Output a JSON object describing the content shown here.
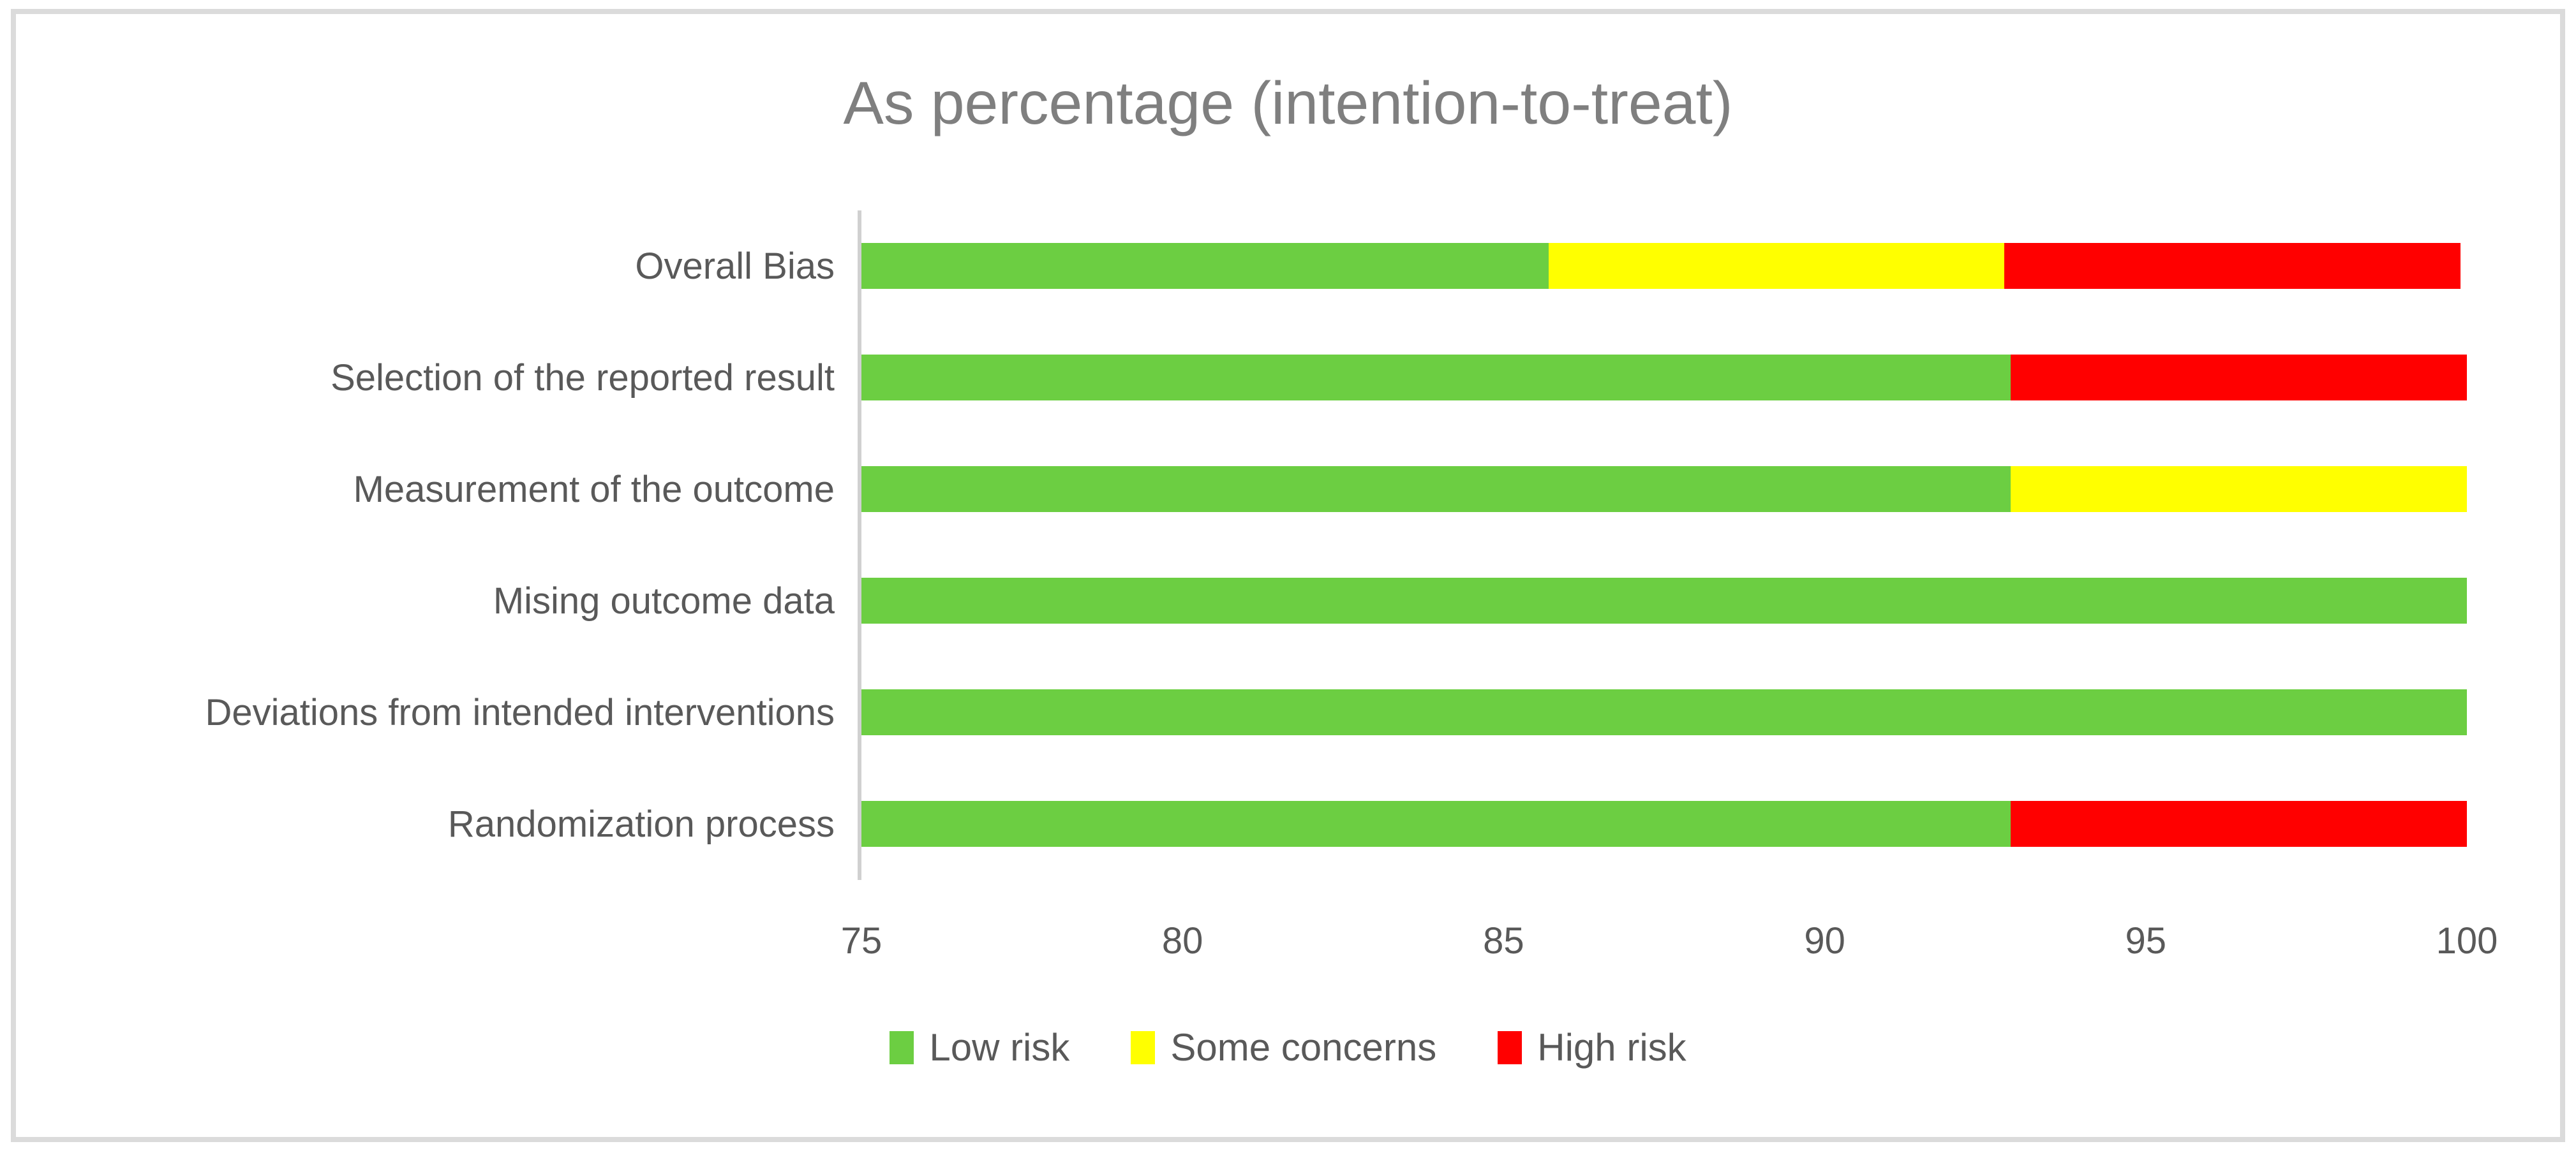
{
  "chart_data": {
    "type": "bar",
    "orientation": "horizontal",
    "stacked": true,
    "title": "As percentage (intention-to-treat)",
    "categories": [
      "Overall Bias",
      "Selection of the reported result",
      "Measurement of the outcome",
      "Mising outcome data",
      "Deviations from intended interventions",
      "Randomization process"
    ],
    "series": [
      {
        "name": "Low risk",
        "color": "#6CCE42",
        "values": [
          85.7,
          92.9,
          92.9,
          100,
          100,
          92.9
        ]
      },
      {
        "name": "Some concerns",
        "color": "#FFFF00",
        "values": [
          7.1,
          0,
          7.1,
          0,
          0,
          0
        ]
      },
      {
        "name": "High risk",
        "color": "#FF0000",
        "values": [
          7.1,
          7.1,
          0,
          0,
          0,
          7.1
        ]
      }
    ],
    "xlim": [
      75,
      100
    ],
    "x_ticks": [
      75,
      80,
      85,
      90,
      95,
      100
    ],
    "grid": false,
    "legend_position": "bottom"
  },
  "colors": {
    "frame_border": "#DBDBDB",
    "axis_line": "#D0D0D0",
    "title_text": "#7F7F7F",
    "label_text": "#595959"
  }
}
